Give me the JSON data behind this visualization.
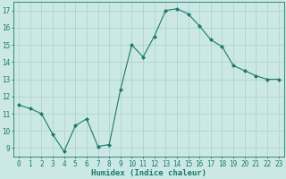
{
  "x": [
    0,
    1,
    2,
    3,
    4,
    5,
    6,
    7,
    8,
    9,
    10,
    11,
    12,
    13,
    14,
    15,
    16,
    17,
    18,
    19,
    20,
    21,
    22,
    23
  ],
  "y": [
    11.5,
    11.3,
    11.0,
    9.8,
    8.8,
    10.3,
    10.7,
    9.1,
    9.2,
    12.4,
    15.0,
    14.3,
    15.5,
    17.0,
    17.1,
    16.8,
    16.1,
    15.3,
    14.9,
    13.8,
    13.5,
    13.2,
    13.0,
    13.0
  ],
  "line_color": "#1a7a6e",
  "marker": "D",
  "marker_size": 2,
  "bg_color": "#cce8e4",
  "grid_color": "#aacfcb",
  "xlabel": "Humidex (Indice chaleur)",
  "xlabel_color": "#1a7a6e",
  "tick_color": "#1a7a6e",
  "ylim": [
    8.5,
    17.5
  ],
  "xlim": [
    -0.5,
    23.5
  ],
  "yticks": [
    9,
    10,
    11,
    12,
    13,
    14,
    15,
    16,
    17
  ],
  "xticks": [
    0,
    1,
    2,
    3,
    4,
    5,
    6,
    7,
    8,
    9,
    10,
    11,
    12,
    13,
    14,
    15,
    16,
    17,
    18,
    19,
    20,
    21,
    22,
    23
  ],
  "label_fontsize": 6.5,
  "tick_fontsize": 5.5
}
